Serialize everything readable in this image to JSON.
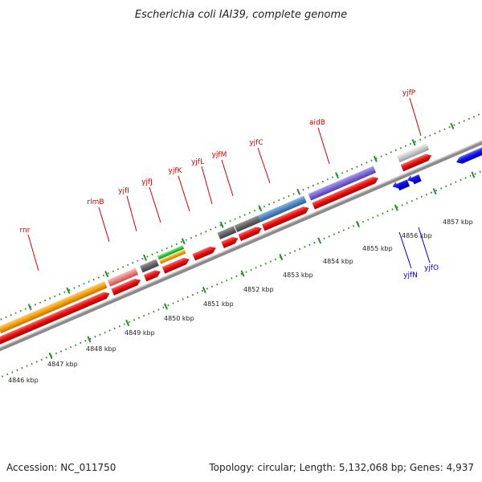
{
  "title": "Escherichia coli IAI39, complete genome",
  "footer": {
    "accession": "Accession: NC_011750",
    "summary": "Topology: circular; Length: 5,132,068 bp; Genes: 4,937"
  },
  "colors": {
    "backbone": "#8a8a8a",
    "tick": "#2e8b2e",
    "cds": "#ee1111",
    "reverse_cds": "#1111ee",
    "label_forward": "#cc0000",
    "label_reverse": "#0000cc"
  },
  "scale_labels": [
    "4846 kbp",
    "4847 kbp",
    "4848 kbp",
    "4849 kbp",
    "4850 kbp",
    "4851 kbp",
    "4852 kbp",
    "4853 kbp",
    "4854 kbp",
    "4855 kbp",
    "4856 kbp",
    "4857 kbp"
  ],
  "gene_labels": [
    {
      "name": "rnr",
      "strand": "forward"
    },
    {
      "name": "rlmB",
      "strand": "forward"
    },
    {
      "name": "yjfI",
      "strand": "forward"
    },
    {
      "name": "yjfJ",
      "strand": "forward"
    },
    {
      "name": "yjfK",
      "strand": "forward"
    },
    {
      "name": "yjfL",
      "strand": "forward"
    },
    {
      "name": "yjfM",
      "strand": "forward"
    },
    {
      "name": "yjfC",
      "strand": "forward"
    },
    {
      "name": "aidB",
      "strand": "forward"
    },
    {
      "name": "yjfP",
      "strand": "forward"
    },
    {
      "name": "yjfN",
      "strand": "reverse"
    },
    {
      "name": "yjfO",
      "strand": "reverse"
    }
  ],
  "feature_colors": {
    "orange": "#f5a00a",
    "pink": "#f08080",
    "dark_gray": "#666666",
    "green": "#33cc33",
    "steel_blue": "#4f88c0",
    "slate_blue": "#7b68d8",
    "light_gray": "#c8c8c8"
  }
}
